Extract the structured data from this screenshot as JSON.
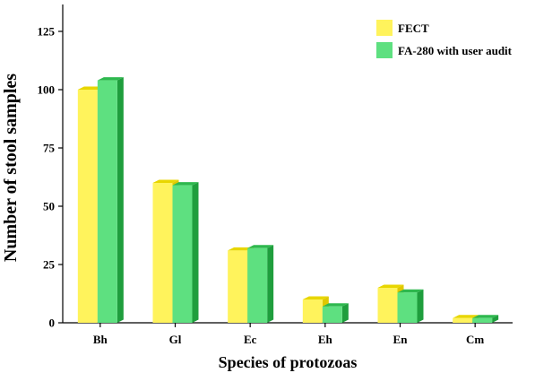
{
  "chart_data": {
    "type": "bar",
    "title": "",
    "xlabel": "Species of protozoas",
    "ylabel": "Number of stool samples",
    "categories": [
      "Bh",
      "Gl",
      "Ec",
      "Eh",
      "En",
      "Cm"
    ],
    "series": [
      {
        "name": "FECT",
        "values": [
          100,
          60,
          31,
          10,
          15,
          2
        ],
        "color": "#fff35c",
        "top_color": "#e8d600",
        "side_color": "#e0c800"
      },
      {
        "name": "FA-280 with user audit",
        "values": [
          104,
          59,
          32,
          7,
          13,
          2
        ],
        "color": "#5ee080",
        "top_color": "#2eb84e",
        "side_color": "#1f9e3d"
      }
    ],
    "yticks": [
      0,
      25,
      50,
      75,
      100,
      125
    ],
    "ytick_labels": [
      "0",
      "25",
      "50",
      "75",
      "100",
      "125"
    ],
    "ylim": [
      0,
      125
    ],
    "grid": false,
    "legend_position": "top-right"
  }
}
